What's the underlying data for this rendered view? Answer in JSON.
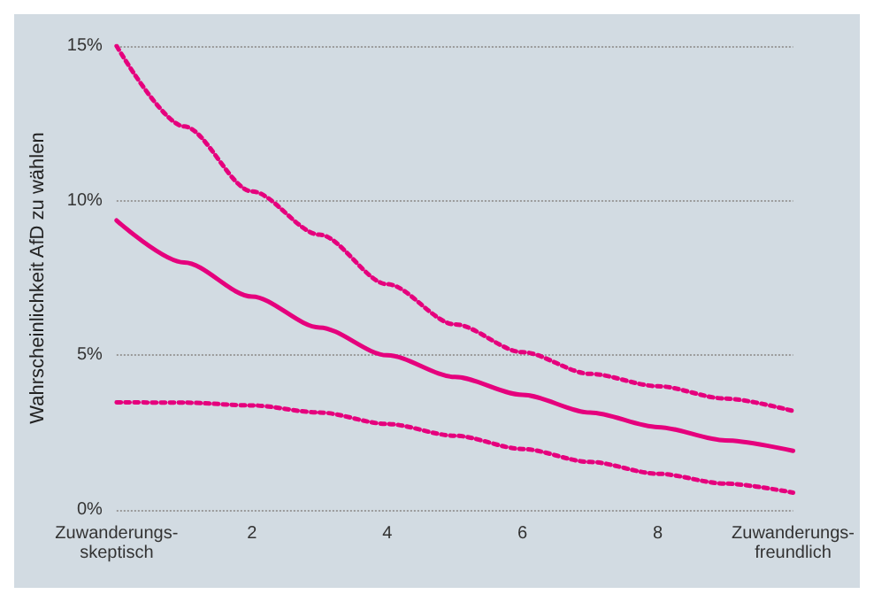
{
  "chart_data": {
    "type": "line",
    "ylabel": "Wahrscheinlichkeit AfD zu wählen",
    "x": [
      0,
      1,
      2,
      3,
      4,
      5,
      6,
      7,
      8,
      9,
      10
    ],
    "series": [
      {
        "color": "#e5007d",
        "line_style": "dotted",
        "values": [
          15.0,
          12.4,
          10.3,
          8.9,
          7.3,
          6.0,
          5.1,
          4.4,
          4.0,
          3.6,
          3.2
        ]
      },
      {
        "color": "#e5007d",
        "line_style": "solid",
        "values": [
          9.36,
          8.0,
          6.9,
          5.9,
          5.0,
          4.3,
          3.72,
          3.15,
          2.68,
          2.25,
          1.91
        ]
      },
      {
        "color": "#e5007d",
        "line_style": "dotted",
        "values": [
          3.48,
          3.47,
          3.38,
          3.15,
          2.78,
          2.4,
          1.97,
          1.55,
          1.17,
          0.85,
          0.56
        ]
      }
    ],
    "xlim": [
      0,
      10
    ],
    "xticks": [
      {
        "value": 0,
        "label": "Zuwanderungs-\nskeptisch"
      },
      2,
      4,
      6,
      8,
      {
        "value": 10,
        "label": "Zuwanderungs-\nfreundlich"
      }
    ],
    "ylim": [
      0,
      15
    ],
    "yticks": [
      {
        "value": 0,
        "label": "0%"
      },
      {
        "value": 5,
        "label": "5%"
      },
      {
        "value": 10,
        "label": "10%"
      },
      {
        "value": 15,
        "label": "15%"
      }
    ],
    "grid": "y",
    "marker": "none"
  }
}
